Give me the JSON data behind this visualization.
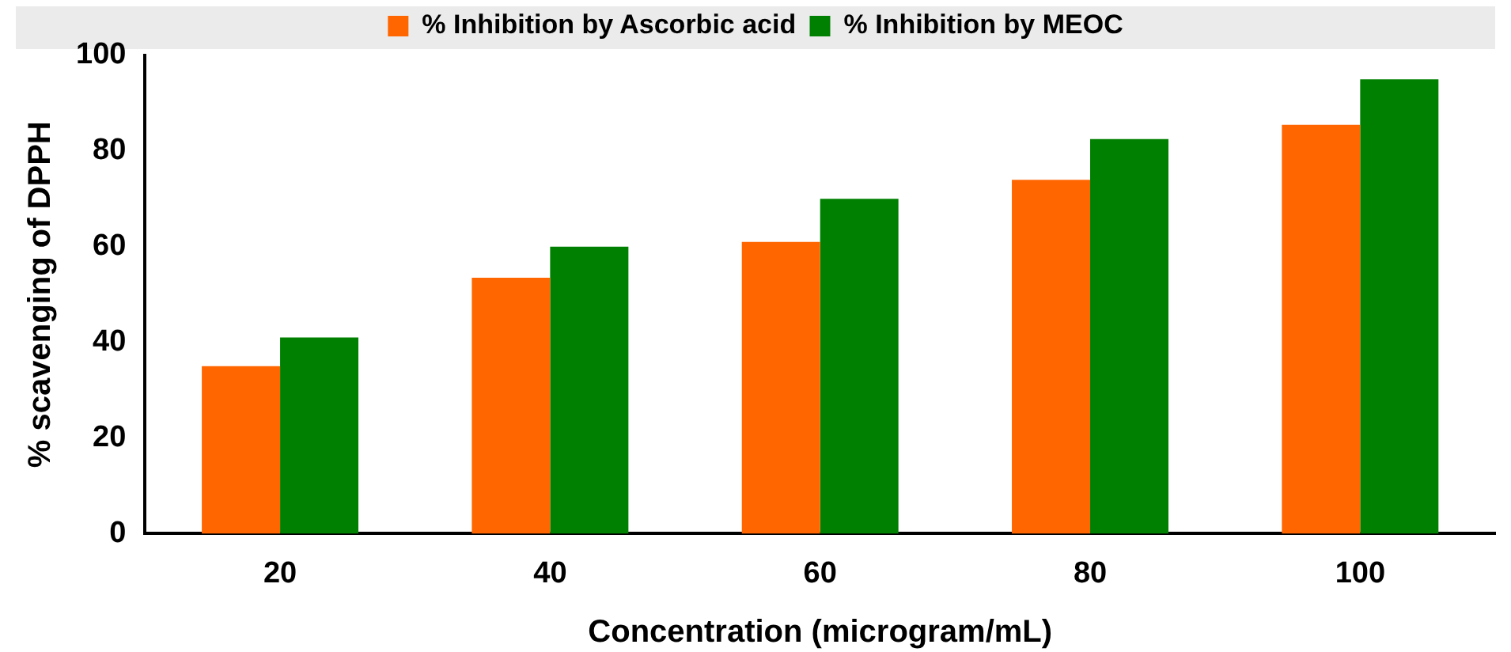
{
  "chart_data": {
    "type": "bar",
    "xlabel": "Concentration (microgram/mL)",
    "ylabel": "% scavenging of DPPH",
    "categories": [
      "20",
      "40",
      "60",
      "80",
      "100"
    ],
    "series": [
      {
        "name": "% Inhibition by Ascorbic acid",
        "color": "#ff6600",
        "values": [
          35,
          53.5,
          61,
          74,
          85.5
        ]
      },
      {
        "name": "% Inhibition by MEOC",
        "color": "#008000",
        "values": [
          41,
          60,
          70,
          82.5,
          95
        ]
      }
    ],
    "ylim": [
      0,
      100
    ],
    "yticks": [
      0,
      20,
      40,
      60,
      80,
      100
    ],
    "grid": false,
    "legend": "top"
  }
}
